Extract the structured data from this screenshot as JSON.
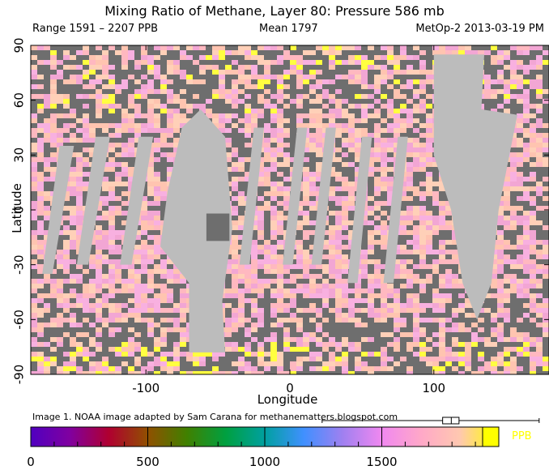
{
  "header": {
    "title": "Mixing Ratio of Methane, Layer 80: Pressure 586 mb",
    "range": "Range 1591 – 2207 PPB",
    "mean": "Mean 1797",
    "satellite": "MetOp-2 2013-03-19 PM"
  },
  "credit": "Image 1. NOAA image adapted by Sam Carana for  methanematters.blogspot.com",
  "chart_data": {
    "type": "heatmap",
    "title": "Mixing Ratio of Methane, Layer 80: Pressure 586 mb",
    "xlabel": "Longitude",
    "ylabel": "Latitude",
    "xlim": [
      -180,
      180
    ],
    "ylim": [
      -90,
      90
    ],
    "xticks": [
      -100,
      0,
      100
    ],
    "yticks": [
      90,
      60,
      30,
      0,
      -30,
      -60,
      -90
    ],
    "value_range": [
      1591,
      2207
    ],
    "mean": 1797,
    "units": "PPB",
    "colorbar": {
      "ticks": [
        0,
        500,
        1000,
        1500
      ],
      "unit_label": "PPB",
      "stops": [
        "#5000c0",
        "#8000a0",
        "#b00030",
        "#905000",
        "#408000",
        "#00a040",
        "#00a0a0",
        "#4090ff",
        "#a080f0",
        "#f088f0",
        "#ffa8c8",
        "#ffc8b0",
        "#ffff00"
      ]
    },
    "boxplot": {
      "whisker_low": 1591,
      "q1": 1760,
      "median": 1797,
      "q3": 1830,
      "whisker_high": 2207
    },
    "colors": {
      "no_data": "#bcbcbc",
      "cloud": "#6e6e6e",
      "land_ocean_base": "#f8b4c4"
    }
  }
}
